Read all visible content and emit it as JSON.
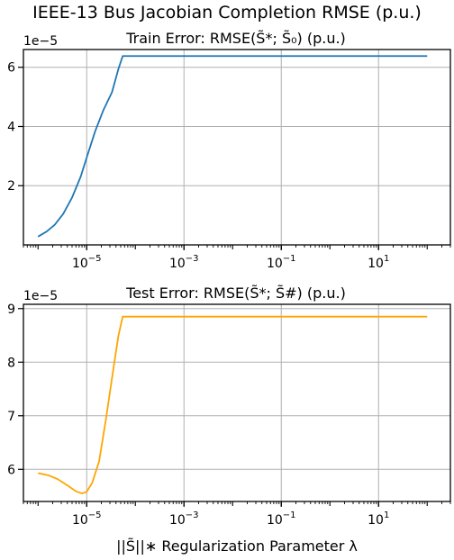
{
  "figure": {
    "suptitle": "IEEE-13 Bus Jacobian Completion RMSE (p.u.)",
    "xlabel": "||S̃||∗ Regularization Parameter λ"
  },
  "chart_data": [
    {
      "type": "line",
      "title": "Train Error: RMSE(S̃*; S̃₀) (p.u.)",
      "xlabel": "",
      "ylabel": "",
      "xscale": "log",
      "xlim": [
        5e-07,
        300
      ],
      "ylim": [
        0.0,
        6.6e-05
      ],
      "y_offset_text": "1e−5",
      "xticks": [
        1e-05,
        0.001,
        0.1,
        10
      ],
      "xtick_labels": [
        "10",
        "10",
        "10",
        "10"
      ],
      "xtick_exponents": [
        "−5",
        "−3",
        "−1",
        "1"
      ],
      "yticks": [
        2e-05,
        4e-05,
        6e-05
      ],
      "ytick_labels": [
        "2",
        "4",
        "6"
      ],
      "grid": true,
      "series": [
        {
          "color": "#1f77b4",
          "x": [
            1e-06,
            1.5e-06,
            2.2e-06,
            3.3e-06,
            5e-06,
            7.5e-06,
            1e-05,
            1.5e-05,
            2.2e-05,
            3.3e-05,
            4.5e-05,
            5.5e-05,
            0.0001,
            0.001,
            0.01,
            0.1,
            1,
            10,
            100
          ],
          "y": [
            2.8e-06,
            4.5e-06,
            6.8e-06,
            1.05e-05,
            1.6e-05,
            2.3e-05,
            2.95e-05,
            3.85e-05,
            4.55e-05,
            5.15e-05,
            5.95e-05,
            6.38e-05,
            6.38e-05,
            6.38e-05,
            6.38e-05,
            6.38e-05,
            6.38e-05,
            6.38e-05,
            6.38e-05
          ]
        }
      ]
    },
    {
      "type": "line",
      "title": "Test Error: RMSE(S̃*; S̃#) (p.u.)",
      "xlabel": "||S̃||∗ Regularization Parameter λ",
      "ylabel": "",
      "xscale": "log",
      "xlim": [
        5e-07,
        300
      ],
      "ylim": [
        5.4e-05,
        9.08e-05
      ],
      "y_offset_text": "1e−5",
      "xticks": [
        1e-05,
        0.001,
        0.1,
        10
      ],
      "xtick_labels": [
        "10",
        "10",
        "10",
        "10"
      ],
      "xtick_exponents": [
        "−5",
        "−3",
        "−1",
        "1"
      ],
      "yticks": [
        6e-05,
        7e-05,
        8e-05,
        9e-05
      ],
      "ytick_labels": [
        "6",
        "7",
        "8",
        "9"
      ],
      "grid": true,
      "series": [
        {
          "color": "#ffa500",
          "x": [
            1e-06,
            1.6e-06,
            2.5e-06,
            4e-06,
            6e-06,
            8e-06,
            1e-05,
            1.3e-05,
            1.8e-05,
            2.5e-05,
            3.5e-05,
            4.5e-05,
            5.5e-05,
            0.0001,
            0.001,
            0.01,
            0.1,
            1,
            10,
            100
          ],
          "y": [
            5.93e-05,
            5.89e-05,
            5.82e-05,
            5.7e-05,
            5.59e-05,
            5.55e-05,
            5.58e-05,
            5.75e-05,
            6.15e-05,
            6.95e-05,
            7.85e-05,
            8.5e-05,
            8.85e-05,
            8.85e-05,
            8.85e-05,
            8.85e-05,
            8.85e-05,
            8.85e-05,
            8.85e-05,
            8.85e-05
          ]
        }
      ]
    }
  ]
}
